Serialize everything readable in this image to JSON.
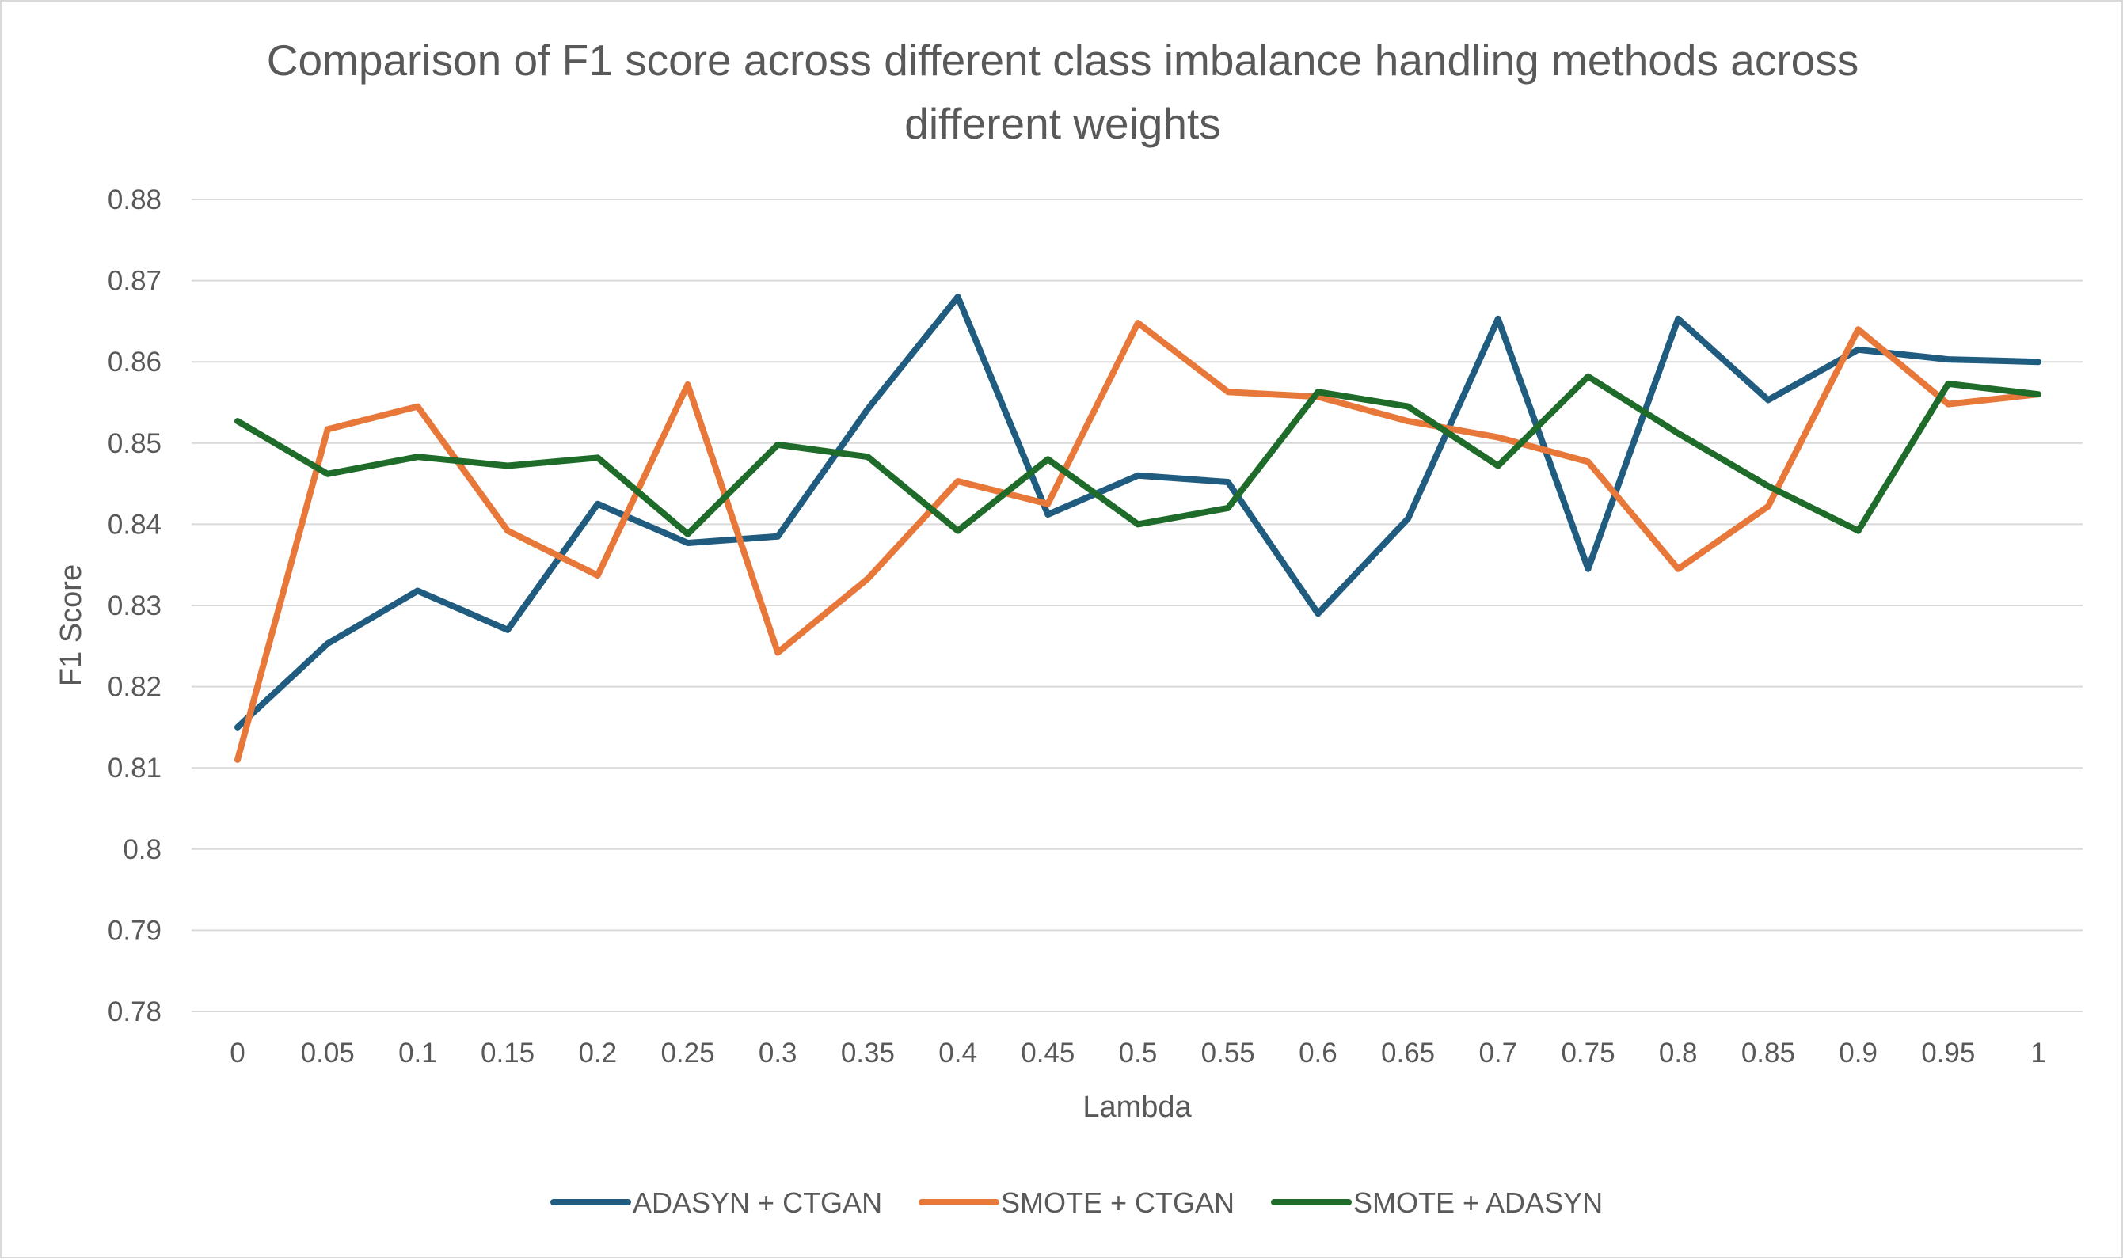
{
  "chart_data": {
    "type": "line",
    "title": "Comparison of F1 score across different class imbalance handling methods across different weights",
    "title_lines": [
      "Comparison of F1 score across different class imbalance handling methods across",
      "different weights"
    ],
    "xlabel": "Lambda",
    "ylabel": "F1 Score",
    "x": [
      "0",
      "0.05",
      "0.1",
      "0.15",
      "0.2",
      "0.25",
      "0.3",
      "0.35",
      "0.4",
      "0.45",
      "0.5",
      "0.55",
      "0.6",
      "0.65",
      "0.7",
      "0.75",
      "0.8",
      "0.85",
      "0.9",
      "0.95",
      "1"
    ],
    "y_ticks": [
      "0.78",
      "0.79",
      "0.8",
      "0.81",
      "0.82",
      "0.83",
      "0.84",
      "0.85",
      "0.86",
      "0.87",
      "0.88"
    ],
    "ylim": [
      0.78,
      0.88
    ],
    "grid": true,
    "legend_position": "bottom",
    "series": [
      {
        "name": "ADASYN + CTGAN",
        "color": "#1f5c80",
        "values": [
          0.815,
          0.8253,
          0.8318,
          0.827,
          0.8425,
          0.8377,
          0.8385,
          0.8542,
          0.868,
          0.8412,
          0.846,
          0.8452,
          0.829,
          0.8407,
          0.8653,
          0.8345,
          0.8653,
          0.8553,
          0.8615,
          0.8603,
          0.86
        ]
      },
      {
        "name": "SMOTE + CTGAN",
        "color": "#e8773a",
        "values": [
          0.811,
          0.8517,
          0.8545,
          0.8392,
          0.8337,
          0.8572,
          0.8242,
          0.8333,
          0.8453,
          0.8425,
          0.8648,
          0.8563,
          0.8557,
          0.8527,
          0.8507,
          0.8477,
          0.8345,
          0.8422,
          0.864,
          0.8548,
          0.856
        ]
      },
      {
        "name": "SMOTE + ADASYN",
        "color": "#1e6b2a",
        "values": [
          0.8527,
          0.8462,
          0.8483,
          0.8472,
          0.8482,
          0.8388,
          0.8498,
          0.8483,
          0.8392,
          0.848,
          0.84,
          0.842,
          0.8563,
          0.8545,
          0.8472,
          0.8582,
          0.8512,
          0.8447,
          0.8392,
          0.8573,
          0.856
        ]
      }
    ]
  }
}
